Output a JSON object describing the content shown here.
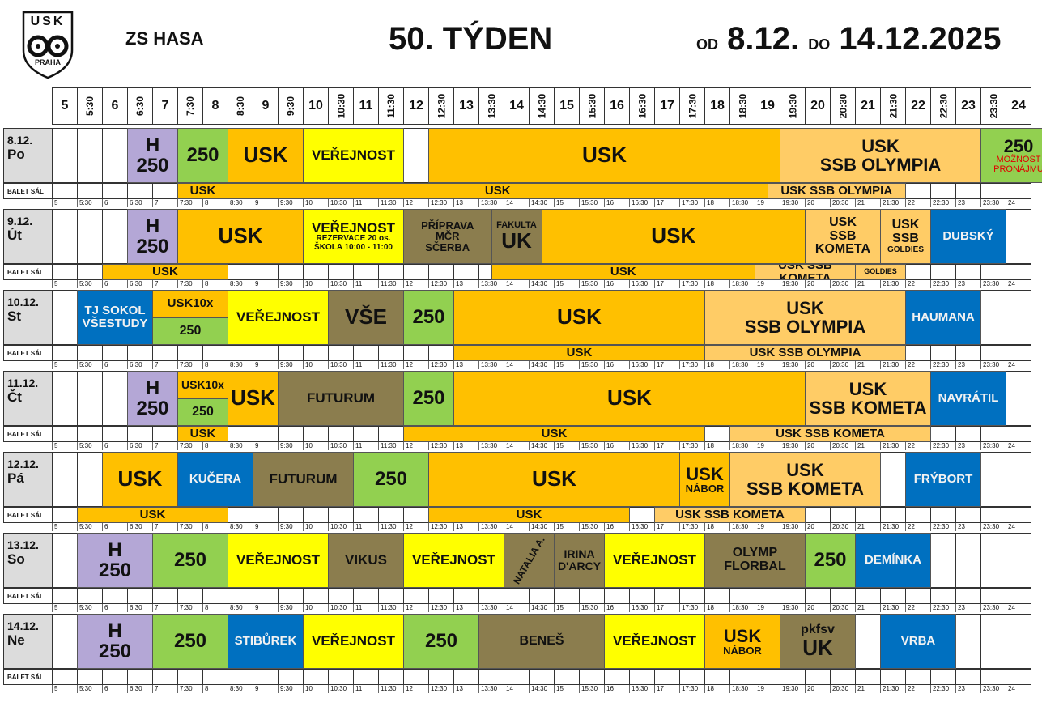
{
  "header": {
    "venue": "ZS HASA",
    "week": "50. TÝDEN",
    "from_label": "OD",
    "from_date": "8.12.",
    "to_label": "DO",
    "to_date": "14.12.2025",
    "logo_top": "USK",
    "logo_bottom": "PRAHA"
  },
  "colors": {
    "usk": "#ffc000",
    "usk_light": "#ffcc66",
    "public": "#ffff00",
    "n250": "#92d050",
    "hockey": "#b4a7d6",
    "blue": "#0070c0",
    "olive": "#8b7d4e",
    "day_cell": "#dcdcdc"
  },
  "time_columns": [
    "5",
    "5:30",
    "6",
    "6:30",
    "7",
    "7:30",
    "8",
    "8:30",
    "9",
    "9:30",
    "10",
    "10:30",
    "11",
    "11:30",
    "12",
    "12:30",
    "13",
    "13:30",
    "14",
    "14:30",
    "15",
    "15:30",
    "16",
    "16:30",
    "17",
    "17:30",
    "18",
    "18:30",
    "19",
    "19:30",
    "20",
    "20:30",
    "21",
    "21:30",
    "22",
    "22:30",
    "23",
    "23:30",
    "24"
  ],
  "balet_label": "BALET SÁL",
  "days": [
    {
      "date": "8.12.",
      "name": "Po",
      "ice": [
        {
          "s": 3,
          "e": 5,
          "lines": [
            "H",
            "250"
          ],
          "c": "hockey",
          "fs": 24
        },
        {
          "s": 5,
          "e": 7,
          "lines": [
            "250"
          ],
          "c": "n250",
          "fs": 24
        },
        {
          "s": 7,
          "e": 10,
          "lines": [
            "USK"
          ],
          "c": "usk",
          "fs": 26
        },
        {
          "s": 10,
          "e": 14,
          "lines": [
            "VEŘEJNOST"
          ],
          "c": "public",
          "fs": 17
        },
        {
          "s": 15,
          "e": 29,
          "lines": [
            "USK"
          ],
          "c": "usk",
          "fs": 26
        },
        {
          "s": 29,
          "e": 37,
          "lines": [
            "USK",
            "SSB OLYMPIA"
          ],
          "c": "usk_light",
          "fs": 22
        },
        {
          "s": 37,
          "e": 40,
          "lines": [
            "250",
            "MOŽNOST",
            "PRONÁJMU"
          ],
          "c": "n250",
          "fs": 22,
          "small_red": true
        }
      ],
      "balet": [
        {
          "s": 5,
          "e": 7,
          "text": "USK",
          "c": "usk"
        },
        {
          "s": 7,
          "e": 28.5,
          "text": "USK",
          "c": "usk"
        },
        {
          "s": 28.5,
          "e": 34,
          "text": "USK SSB OLYMPIA",
          "c": "usk_light"
        }
      ]
    },
    {
      "date": "9.12.",
      "name": "Út",
      "ice": [
        {
          "s": 3,
          "e": 5,
          "lines": [
            "H",
            "250"
          ],
          "c": "hockey",
          "fs": 24
        },
        {
          "s": 5,
          "e": 10,
          "lines": [
            "USK"
          ],
          "c": "usk",
          "fs": 26
        },
        {
          "s": 10,
          "e": 14,
          "lines": [
            "VEŘEJNOST",
            "REZERVACE 20 os.",
            "ŠKOLA 10:00 - 11:00"
          ],
          "c": "public",
          "fs": 17,
          "sub": 10
        },
        {
          "s": 14,
          "e": 17.5,
          "lines": [
            "PŘÍPRAVA",
            "MČR",
            "SČERBA"
          ],
          "c": "olive",
          "fs": 13
        },
        {
          "s": 17.5,
          "e": 19.5,
          "lines": [
            "FAKULTA",
            "UK"
          ],
          "c": "olive",
          "fs": 11,
          "big2": 26
        },
        {
          "s": 19.5,
          "e": 30,
          "lines": [
            "USK"
          ],
          "c": "usk",
          "fs": 26
        },
        {
          "s": 30,
          "e": 33,
          "lines": [
            "USK",
            "SSB",
            "KOMETA"
          ],
          "c": "usk_light",
          "fs": 16
        },
        {
          "s": 33,
          "e": 35,
          "lines": [
            "USK",
            "SSB",
            "GOLDIES"
          ],
          "c": "usk_light",
          "fs": 16,
          "last_small": true
        },
        {
          "s": 35,
          "e": 38,
          "lines": [
            "DUBSKÝ"
          ],
          "c": "blue",
          "fs": 15
        }
      ],
      "balet": [
        {
          "s": 2,
          "e": 7,
          "text": "USK",
          "c": "usk"
        },
        {
          "s": 17.5,
          "e": 28,
          "text": "USK",
          "c": "usk"
        },
        {
          "s": 28,
          "e": 32,
          "text": "USK SSB KOMETA",
          "c": "usk_light"
        },
        {
          "s": 32,
          "e": 34,
          "text": "GOLDIES",
          "c": "usk_light",
          "small": true
        }
      ]
    },
    {
      "date": "10.12.",
      "name": "St",
      "ice": [
        {
          "s": 1,
          "e": 4,
          "lines": [
            "TJ SOKOL",
            "VŠESTUDY"
          ],
          "c": "blue",
          "fs": 15
        },
        {
          "s": 4,
          "e": 7,
          "lines": [
            "USK10x"
          ],
          "c": "usk",
          "fs": 15,
          "half": "top"
        },
        {
          "s": 4,
          "e": 7,
          "lines": [
            "250"
          ],
          "c": "n250",
          "fs": 16,
          "half": "bottom"
        },
        {
          "s": 7,
          "e": 11,
          "lines": [
            "VEŘEJNOST"
          ],
          "c": "public",
          "fs": 17
        },
        {
          "s": 11,
          "e": 14,
          "lines": [
            "VŠE"
          ],
          "c": "olive",
          "fs": 26
        },
        {
          "s": 14,
          "e": 16,
          "lines": [
            "250"
          ],
          "c": "n250",
          "fs": 24
        },
        {
          "s": 16,
          "e": 26,
          "lines": [
            "USK"
          ],
          "c": "usk",
          "fs": 26
        },
        {
          "s": 26,
          "e": 34,
          "lines": [
            "USK",
            "SSB OLYMPIA"
          ],
          "c": "usk_light",
          "fs": 22
        },
        {
          "s": 34,
          "e": 37,
          "lines": [
            "HAUMANA"
          ],
          "c": "blue",
          "fs": 15
        }
      ],
      "balet": [
        {
          "s": 16,
          "e": 26,
          "text": "USK",
          "c": "usk"
        },
        {
          "s": 26,
          "e": 34,
          "text": "USK SSB OLYMPIA",
          "c": "usk_light"
        }
      ]
    },
    {
      "date": "11.12.",
      "name": "Čt",
      "ice": [
        {
          "s": 3,
          "e": 5,
          "lines": [
            "H",
            "250"
          ],
          "c": "hockey",
          "fs": 24
        },
        {
          "s": 5,
          "e": 7,
          "lines": [
            "USK10x"
          ],
          "c": "usk",
          "fs": 14,
          "half": "top"
        },
        {
          "s": 5,
          "e": 7,
          "lines": [
            "250"
          ],
          "c": "n250",
          "fs": 16,
          "half": "bottom"
        },
        {
          "s": 7,
          "e": 9,
          "lines": [
            "USK"
          ],
          "c": "usk",
          "fs": 26
        },
        {
          "s": 9,
          "e": 14,
          "lines": [
            "FUTURUM"
          ],
          "c": "olive",
          "fs": 17
        },
        {
          "s": 14,
          "e": 16,
          "lines": [
            "250"
          ],
          "c": "n250",
          "fs": 24
        },
        {
          "s": 16,
          "e": 30,
          "lines": [
            "USK"
          ],
          "c": "usk",
          "fs": 26
        },
        {
          "s": 30,
          "e": 35,
          "lines": [
            "USK",
            "SSB KOMETA"
          ],
          "c": "usk_light",
          "fs": 22
        },
        {
          "s": 35,
          "e": 38,
          "lines": [
            "NAVRÁTIL"
          ],
          "c": "blue",
          "fs": 15
        }
      ],
      "balet": [
        {
          "s": 5,
          "e": 7,
          "text": "USK",
          "c": "usk"
        },
        {
          "s": 14,
          "e": 26,
          "text": "USK",
          "c": "usk"
        },
        {
          "s": 27,
          "e": 35,
          "text": "USK SSB KOMETA",
          "c": "usk_light"
        }
      ]
    },
    {
      "date": "12.12.",
      "name": "Pá",
      "ice": [
        {
          "s": 2,
          "e": 5,
          "lines": [
            "USK"
          ],
          "c": "usk",
          "fs": 26
        },
        {
          "s": 5,
          "e": 8,
          "lines": [
            "KUČERA"
          ],
          "c": "blue",
          "fs": 15
        },
        {
          "s": 8,
          "e": 12,
          "lines": [
            "FUTURUM"
          ],
          "c": "olive",
          "fs": 17
        },
        {
          "s": 12,
          "e": 15,
          "lines": [
            "250"
          ],
          "c": "n250",
          "fs": 24
        },
        {
          "s": 15,
          "e": 25,
          "lines": [
            "USK"
          ],
          "c": "usk",
          "fs": 26
        },
        {
          "s": 25,
          "e": 27,
          "lines": [
            "USK",
            "NÁBOR"
          ],
          "c": "usk",
          "fs": 22,
          "second_small": true
        },
        {
          "s": 27,
          "e": 33,
          "lines": [
            "USK",
            "SSB KOMETA"
          ],
          "c": "usk_light",
          "fs": 22
        },
        {
          "s": 34,
          "e": 37,
          "lines": [
            "FRÝBORT"
          ],
          "c": "blue",
          "fs": 15
        }
      ],
      "balet": [
        {
          "s": 1,
          "e": 7,
          "text": "USK",
          "c": "usk"
        },
        {
          "s": 15,
          "e": 23,
          "text": "USK",
          "c": "usk"
        },
        {
          "s": 24,
          "e": 30,
          "text": "USK SSB KOMETA",
          "c": "usk_light"
        }
      ]
    },
    {
      "date": "13.12.",
      "name": "So",
      "ice": [
        {
          "s": 1,
          "e": 4,
          "lines": [
            "H",
            "250"
          ],
          "c": "hockey",
          "fs": 24
        },
        {
          "s": 4,
          "e": 7,
          "lines": [
            "250"
          ],
          "c": "n250",
          "fs": 24
        },
        {
          "s": 7,
          "e": 11,
          "lines": [
            "VEŘEJNOST"
          ],
          "c": "public",
          "fs": 17
        },
        {
          "s": 11,
          "e": 14,
          "lines": [
            "VIKUS"
          ],
          "c": "olive",
          "fs": 17
        },
        {
          "s": 14,
          "e": 18,
          "lines": [
            "VEŘEJNOST"
          ],
          "c": "public",
          "fs": 17
        },
        {
          "s": 18,
          "e": 20,
          "lines": [
            "NATALIA A."
          ],
          "c": "olive",
          "fs": 12,
          "rotate": true
        },
        {
          "s": 20,
          "e": 22,
          "lines": [
            "IRINA",
            "D'ARCY"
          ],
          "c": "olive",
          "fs": 14
        },
        {
          "s": 22,
          "e": 26,
          "lines": [
            "VEŘEJNOST"
          ],
          "c": "public",
          "fs": 17
        },
        {
          "s": 26,
          "e": 30,
          "lines": [
            "OLYMP",
            "FLORBAL"
          ],
          "c": "olive",
          "fs": 16
        },
        {
          "s": 30,
          "e": 32,
          "lines": [
            "250"
          ],
          "c": "n250",
          "fs": 24
        },
        {
          "s": 32,
          "e": 35,
          "lines": [
            "DEMÍNKA"
          ],
          "c": "blue",
          "fs": 15
        }
      ],
      "balet": []
    },
    {
      "date": "14.12.",
      "name": "Ne",
      "ice": [
        {
          "s": 1,
          "e": 4,
          "lines": [
            "H",
            "250"
          ],
          "c": "hockey",
          "fs": 24
        },
        {
          "s": 4,
          "e": 7,
          "lines": [
            "250"
          ],
          "c": "n250",
          "fs": 24
        },
        {
          "s": 7,
          "e": 10,
          "lines": [
            "STIBŮREK"
          ],
          "c": "blue",
          "fs": 15
        },
        {
          "s": 10,
          "e": 14,
          "lines": [
            "VEŘEJNOST"
          ],
          "c": "public",
          "fs": 17
        },
        {
          "s": 14,
          "e": 17,
          "lines": [
            "250"
          ],
          "c": "n250",
          "fs": 24
        },
        {
          "s": 17,
          "e": 22,
          "lines": [
            "BENEŠ"
          ],
          "c": "olive",
          "fs": 16
        },
        {
          "s": 22,
          "e": 26,
          "lines": [
            "VEŘEJNOST"
          ],
          "c": "public",
          "fs": 17
        },
        {
          "s": 26,
          "e": 29,
          "lines": [
            "USK",
            "NÁBOR"
          ],
          "c": "usk",
          "fs": 22,
          "second_small": true
        },
        {
          "s": 29,
          "e": 32,
          "lines": [
            "pkfsv",
            "UK"
          ],
          "c": "olive",
          "fs": 16,
          "big2": 26
        },
        {
          "s": 33,
          "e": 36,
          "lines": [
            "VRBA"
          ],
          "c": "blue",
          "fs": 15
        }
      ],
      "balet": []
    }
  ]
}
